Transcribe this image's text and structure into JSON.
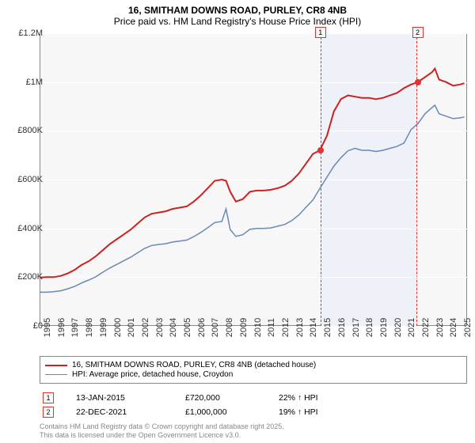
{
  "title_line1": "16, SMITHAM DOWNS ROAD, PURLEY, CR8 4NB",
  "title_line2": "Price paid vs. HM Land Registry's House Price Index (HPI)",
  "chart": {
    "type": "line",
    "background_color": "#f7f7f7",
    "grid_color": "#ffffff",
    "border_color": "#888888",
    "xlim": [
      1995,
      2025.5
    ],
    "ylim": [
      0,
      1200000
    ],
    "ytick_step": 200000,
    "ytick_labels": [
      "£0",
      "£200K",
      "£400K",
      "£600K",
      "£800K",
      "£1M",
      "£1.2M"
    ],
    "xtick_step": 1,
    "xtick_labels": [
      "1995",
      "1996",
      "1997",
      "1998",
      "1999",
      "2000",
      "2001",
      "2002",
      "2003",
      "2004",
      "2005",
      "2006",
      "2007",
      "2008",
      "2009",
      "2010",
      "2011",
      "2012",
      "2013",
      "2014",
      "2015",
      "2016",
      "2017",
      "2018",
      "2019",
      "2020",
      "2021",
      "2022",
      "2023",
      "2024",
      "2025"
    ],
    "shaded_region": {
      "x_start": 2015.04,
      "x_end": 2021.97,
      "fill": "#eef1f7",
      "border": "#d33"
    },
    "series": [
      {
        "name": "16, SMITHAM DOWNS ROAD, PURLEY, CR8 4NB (detached house)",
        "color": "#cc2222",
        "line_width": 2,
        "data": [
          [
            1995,
            198000
          ],
          [
            1995.5,
            200000
          ],
          [
            1996,
            200000
          ],
          [
            1996.5,
            205000
          ],
          [
            1997,
            215000
          ],
          [
            1997.5,
            230000
          ],
          [
            1998,
            250000
          ],
          [
            1998.5,
            265000
          ],
          [
            1999,
            285000
          ],
          [
            1999.5,
            310000
          ],
          [
            2000,
            335000
          ],
          [
            2000.5,
            355000
          ],
          [
            2001,
            375000
          ],
          [
            2001.5,
            395000
          ],
          [
            2002,
            420000
          ],
          [
            2002.5,
            445000
          ],
          [
            2003,
            460000
          ],
          [
            2003.5,
            465000
          ],
          [
            2004,
            470000
          ],
          [
            2004.5,
            480000
          ],
          [
            2005,
            485000
          ],
          [
            2005.5,
            490000
          ],
          [
            2006,
            510000
          ],
          [
            2006.5,
            535000
          ],
          [
            2007,
            565000
          ],
          [
            2007.5,
            595000
          ],
          [
            2008,
            600000
          ],
          [
            2008.3,
            595000
          ],
          [
            2008.6,
            550000
          ],
          [
            2009,
            510000
          ],
          [
            2009.5,
            520000
          ],
          [
            2010,
            550000
          ],
          [
            2010.5,
            555000
          ],
          [
            2011,
            555000
          ],
          [
            2011.5,
            558000
          ],
          [
            2012,
            565000
          ],
          [
            2012.5,
            575000
          ],
          [
            2013,
            595000
          ],
          [
            2013.5,
            625000
          ],
          [
            2014,
            665000
          ],
          [
            2014.5,
            705000
          ],
          [
            2015,
            720000
          ],
          [
            2015.5,
            780000
          ],
          [
            2016,
            880000
          ],
          [
            2016.5,
            930000
          ],
          [
            2017,
            945000
          ],
          [
            2017.5,
            940000
          ],
          [
            2018,
            935000
          ],
          [
            2018.5,
            935000
          ],
          [
            2019,
            930000
          ],
          [
            2019.5,
            935000
          ],
          [
            2020,
            945000
          ],
          [
            2020.5,
            955000
          ],
          [
            2021,
            975000
          ],
          [
            2021.5,
            990000
          ],
          [
            2022,
            1000000
          ],
          [
            2022.5,
            1020000
          ],
          [
            2023,
            1040000
          ],
          [
            2023.2,
            1055000
          ],
          [
            2023.5,
            1010000
          ],
          [
            2024,
            1000000
          ],
          [
            2024.5,
            985000
          ],
          [
            2025,
            990000
          ],
          [
            2025.3,
            995000
          ]
        ]
      },
      {
        "name": "HPI: Average price, detached house, Croydon",
        "color": "#6a87b8",
        "line_width": 1.5,
        "data": [
          [
            1995,
            138000
          ],
          [
            1995.5,
            138000
          ],
          [
            1996,
            140000
          ],
          [
            1996.5,
            144000
          ],
          [
            1997,
            152000
          ],
          [
            1997.5,
            162000
          ],
          [
            1998,
            176000
          ],
          [
            1998.5,
            188000
          ],
          [
            1999,
            201000
          ],
          [
            1999.5,
            220000
          ],
          [
            2000,
            237000
          ],
          [
            2000.5,
            252000
          ],
          [
            2001,
            267000
          ],
          [
            2001.5,
            282000
          ],
          [
            2002,
            300000
          ],
          [
            2002.5,
            318000
          ],
          [
            2003,
            330000
          ],
          [
            2003.5,
            334000
          ],
          [
            2004,
            337000
          ],
          [
            2004.5,
            344000
          ],
          [
            2005,
            348000
          ],
          [
            2005.5,
            352000
          ],
          [
            2006,
            366000
          ],
          [
            2006.5,
            383000
          ],
          [
            2007,
            403000
          ],
          [
            2007.5,
            424000
          ],
          [
            2008,
            428000
          ],
          [
            2008.3,
            480000
          ],
          [
            2008.6,
            395000
          ],
          [
            2009,
            367000
          ],
          [
            2009.5,
            374000
          ],
          [
            2010,
            396000
          ],
          [
            2010.5,
            400000
          ],
          [
            2011,
            400000
          ],
          [
            2011.5,
            402000
          ],
          [
            2012,
            409000
          ],
          [
            2012.5,
            416000
          ],
          [
            2013,
            432000
          ],
          [
            2013.5,
            455000
          ],
          [
            2014,
            486000
          ],
          [
            2014.5,
            516000
          ],
          [
            2015,
            564000
          ],
          [
            2015.5,
            610000
          ],
          [
            2016,
            655000
          ],
          [
            2016.5,
            690000
          ],
          [
            2017,
            718000
          ],
          [
            2017.5,
            728000
          ],
          [
            2018,
            720000
          ],
          [
            2018.5,
            720000
          ],
          [
            2019,
            715000
          ],
          [
            2019.5,
            720000
          ],
          [
            2020,
            728000
          ],
          [
            2020.5,
            736000
          ],
          [
            2021,
            750000
          ],
          [
            2021.5,
            805000
          ],
          [
            2022,
            830000
          ],
          [
            2022.5,
            870000
          ],
          [
            2023,
            895000
          ],
          [
            2023.2,
            905000
          ],
          [
            2023.5,
            870000
          ],
          [
            2024,
            860000
          ],
          [
            2024.5,
            850000
          ],
          [
            2025,
            853000
          ],
          [
            2025.3,
            857000
          ]
        ]
      }
    ],
    "markers": [
      {
        "num": "1",
        "x": 2015.04,
        "y": 720000
      },
      {
        "num": "2",
        "x": 2021.97,
        "y": 1000000
      }
    ]
  },
  "legend": {
    "items": [
      {
        "color": "#cc2222",
        "width": 2,
        "label": "16, SMITHAM DOWNS ROAD, PURLEY, CR8 4NB (detached house)"
      },
      {
        "color": "#6a87b8",
        "width": 1.5,
        "label": "HPI: Average price, detached house, Croydon"
      }
    ]
  },
  "sales": [
    {
      "num": "1",
      "date": "13-JAN-2015",
      "price": "£720,000",
      "pct": "22% ↑ HPI"
    },
    {
      "num": "2",
      "date": "22-DEC-2021",
      "price": "£1,000,000",
      "pct": "19% ↑ HPI"
    }
  ],
  "attribution": {
    "line1": "Contains HM Land Registry data © Crown copyright and database right 2025.",
    "line2": "This data is licensed under the Open Government Licence v3.0."
  }
}
